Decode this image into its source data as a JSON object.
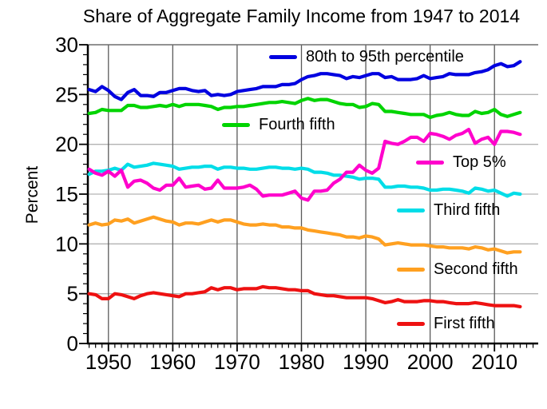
{
  "title": "Share of Aggregate Family Income from 1947 to 2014",
  "chart_data": {
    "type": "line",
    "title": "Share of Aggregate Family Income from 1947 to 2014",
    "xlabel": "",
    "ylabel": "Percent",
    "xlim": [
      1946.8,
      2016.8
    ],
    "ylim": [
      0,
      30
    ],
    "xticks": [
      1950,
      1960,
      1970,
      1980,
      1990,
      2000,
      2010
    ],
    "yticks": [
      0,
      5,
      10,
      15,
      20,
      25,
      30
    ],
    "grid": true,
    "legend_position": "inline-annotations",
    "x": [
      1947,
      1948,
      1949,
      1950,
      1951,
      1952,
      1953,
      1954,
      1955,
      1956,
      1957,
      1958,
      1959,
      1960,
      1961,
      1962,
      1963,
      1964,
      1965,
      1966,
      1967,
      1968,
      1969,
      1970,
      1971,
      1972,
      1973,
      1974,
      1975,
      1976,
      1977,
      1978,
      1979,
      1980,
      1981,
      1982,
      1983,
      1984,
      1985,
      1986,
      1987,
      1988,
      1989,
      1990,
      1991,
      1992,
      1993,
      1994,
      1995,
      1996,
      1997,
      1998,
      1999,
      2000,
      2001,
      2002,
      2003,
      2004,
      2005,
      2006,
      2007,
      2008,
      2009,
      2010,
      2011,
      2012,
      2013,
      2014
    ],
    "series": [
      {
        "key": "third",
        "name": "Third fifth",
        "color": "#00dde8",
        "values": [
          17.0,
          17.3,
          17.3,
          17.4,
          17.6,
          17.4,
          18.0,
          17.7,
          17.8,
          17.9,
          18.1,
          18.0,
          17.9,
          17.8,
          17.5,
          17.6,
          17.7,
          17.7,
          17.8,
          17.8,
          17.5,
          17.7,
          17.7,
          17.6,
          17.6,
          17.5,
          17.5,
          17.6,
          17.7,
          17.7,
          17.6,
          17.6,
          17.5,
          17.6,
          17.5,
          17.2,
          17.2,
          17.1,
          16.9,
          16.9,
          16.8,
          16.7,
          16.5,
          16.6,
          16.6,
          16.5,
          15.7,
          15.7,
          15.8,
          15.8,
          15.7,
          15.7,
          15.6,
          15.4,
          15.4,
          15.5,
          15.5,
          15.4,
          15.3,
          15.1,
          15.6,
          15.5,
          15.3,
          15.4,
          15.1,
          14.8,
          15.1,
          15.0
        ]
      },
      {
        "key": "second",
        "name": "Second fifth",
        "color": "#ffa020",
        "values": [
          11.9,
          12.1,
          11.9,
          12.0,
          12.4,
          12.3,
          12.5,
          12.1,
          12.3,
          12.5,
          12.7,
          12.5,
          12.3,
          12.2,
          11.9,
          12.1,
          12.1,
          12.0,
          12.2,
          12.4,
          12.2,
          12.4,
          12.4,
          12.2,
          12.0,
          11.9,
          11.9,
          12.0,
          11.9,
          11.9,
          11.7,
          11.7,
          11.6,
          11.6,
          11.4,
          11.3,
          11.2,
          11.1,
          11.0,
          10.9,
          10.7,
          10.7,
          10.6,
          10.8,
          10.7,
          10.5,
          9.9,
          10.0,
          10.1,
          10.0,
          9.9,
          9.9,
          9.9,
          9.8,
          9.7,
          9.7,
          9.6,
          9.6,
          9.6,
          9.5,
          9.7,
          9.6,
          9.4,
          9.5,
          9.3,
          9.1,
          9.2,
          9.2
        ]
      },
      {
        "key": "first",
        "name": "First fifth",
        "color": "#ee1111",
        "values": [
          5.0,
          4.9,
          4.5,
          4.5,
          5.0,
          4.9,
          4.7,
          4.5,
          4.8,
          5.0,
          5.1,
          5.0,
          4.9,
          4.8,
          4.7,
          5.0,
          5.0,
          5.1,
          5.2,
          5.6,
          5.4,
          5.6,
          5.6,
          5.4,
          5.5,
          5.5,
          5.5,
          5.7,
          5.6,
          5.6,
          5.5,
          5.4,
          5.4,
          5.3,
          5.3,
          5.0,
          4.9,
          4.8,
          4.8,
          4.7,
          4.6,
          4.6,
          4.6,
          4.6,
          4.5,
          4.3,
          4.1,
          4.2,
          4.4,
          4.2,
          4.2,
          4.2,
          4.3,
          4.3,
          4.2,
          4.2,
          4.1,
          4.0,
          4.0,
          4.0,
          4.1,
          4.0,
          3.9,
          3.8,
          3.8,
          3.8,
          3.8,
          3.7
        ]
      },
      {
        "key": "fourth",
        "name": "Fourth fifth",
        "color": "#00d400",
        "values": [
          23.1,
          23.2,
          23.5,
          23.4,
          23.4,
          23.4,
          23.9,
          23.9,
          23.7,
          23.7,
          23.8,
          23.9,
          23.8,
          24.0,
          23.8,
          24.0,
          24.0,
          24.0,
          23.9,
          23.8,
          23.5,
          23.7,
          23.7,
          23.8,
          23.8,
          23.9,
          24.0,
          24.1,
          24.2,
          24.2,
          24.3,
          24.2,
          24.1,
          24.4,
          24.6,
          24.4,
          24.5,
          24.5,
          24.3,
          24.1,
          24.0,
          24.0,
          23.7,
          23.8,
          24.1,
          24.0,
          23.3,
          23.3,
          23.2,
          23.1,
          23.0,
          23.0,
          23.0,
          22.7,
          22.9,
          23.0,
          23.2,
          23.0,
          22.9,
          22.9,
          23.3,
          23.1,
          23.2,
          23.5,
          23.0,
          22.8,
          23.0,
          23.2
        ]
      },
      {
        "key": "p80_95",
        "name": "80th to 95th percentile",
        "color": "#0000e0",
        "values": [
          25.5,
          25.3,
          25.8,
          25.4,
          24.8,
          24.5,
          25.2,
          25.5,
          24.9,
          24.9,
          24.8,
          25.2,
          25.2,
          25.4,
          25.6,
          25.6,
          25.4,
          25.3,
          25.4,
          24.9,
          25.0,
          24.9,
          25.0,
          25.3,
          25.4,
          25.5,
          25.6,
          25.8,
          25.8,
          25.8,
          26.0,
          26.0,
          26.1,
          26.5,
          26.8,
          26.9,
          27.1,
          27.1,
          27.0,
          26.9,
          26.6,
          26.8,
          26.7,
          26.9,
          27.1,
          27.1,
          26.7,
          26.8,
          26.5,
          26.5,
          26.5,
          26.6,
          26.9,
          26.6,
          26.7,
          26.8,
          27.1,
          27.0,
          27.0,
          27.0,
          27.2,
          27.3,
          27.5,
          27.9,
          28.1,
          27.8,
          27.9,
          28.3
        ]
      },
      {
        "key": "top5",
        "name": "Top 5%",
        "color": "#ff00cc",
        "values": [
          17.5,
          17.1,
          16.9,
          17.3,
          16.8,
          17.4,
          15.7,
          16.3,
          16.4,
          16.1,
          15.6,
          15.4,
          15.9,
          15.9,
          16.6,
          15.7,
          15.8,
          15.9,
          15.5,
          15.6,
          16.4,
          15.6,
          15.6,
          15.6,
          15.7,
          15.9,
          15.5,
          14.8,
          14.9,
          14.9,
          14.9,
          15.1,
          15.3,
          14.6,
          14.4,
          15.3,
          15.3,
          15.4,
          16.1,
          16.5,
          17.2,
          17.2,
          17.9,
          17.4,
          17.1,
          17.6,
          20.3,
          20.1,
          20.0,
          20.3,
          20.7,
          20.7,
          20.3,
          21.1,
          21.0,
          20.8,
          20.5,
          20.9,
          21.1,
          21.5,
          20.1,
          20.5,
          20.7,
          20.0,
          21.3,
          21.3,
          21.2,
          21.0
        ]
      }
    ],
    "legend": [
      {
        "key": "p80_95",
        "label": "80th to 95th percentile"
      },
      {
        "key": "fourth",
        "label": "Fourth fifth"
      },
      {
        "key": "top5",
        "label": "Top 5%"
      },
      {
        "key": "third",
        "label": "Third fifth"
      },
      {
        "key": "second",
        "label": "Second fifth"
      },
      {
        "key": "first",
        "label": "First fifth"
      }
    ]
  }
}
